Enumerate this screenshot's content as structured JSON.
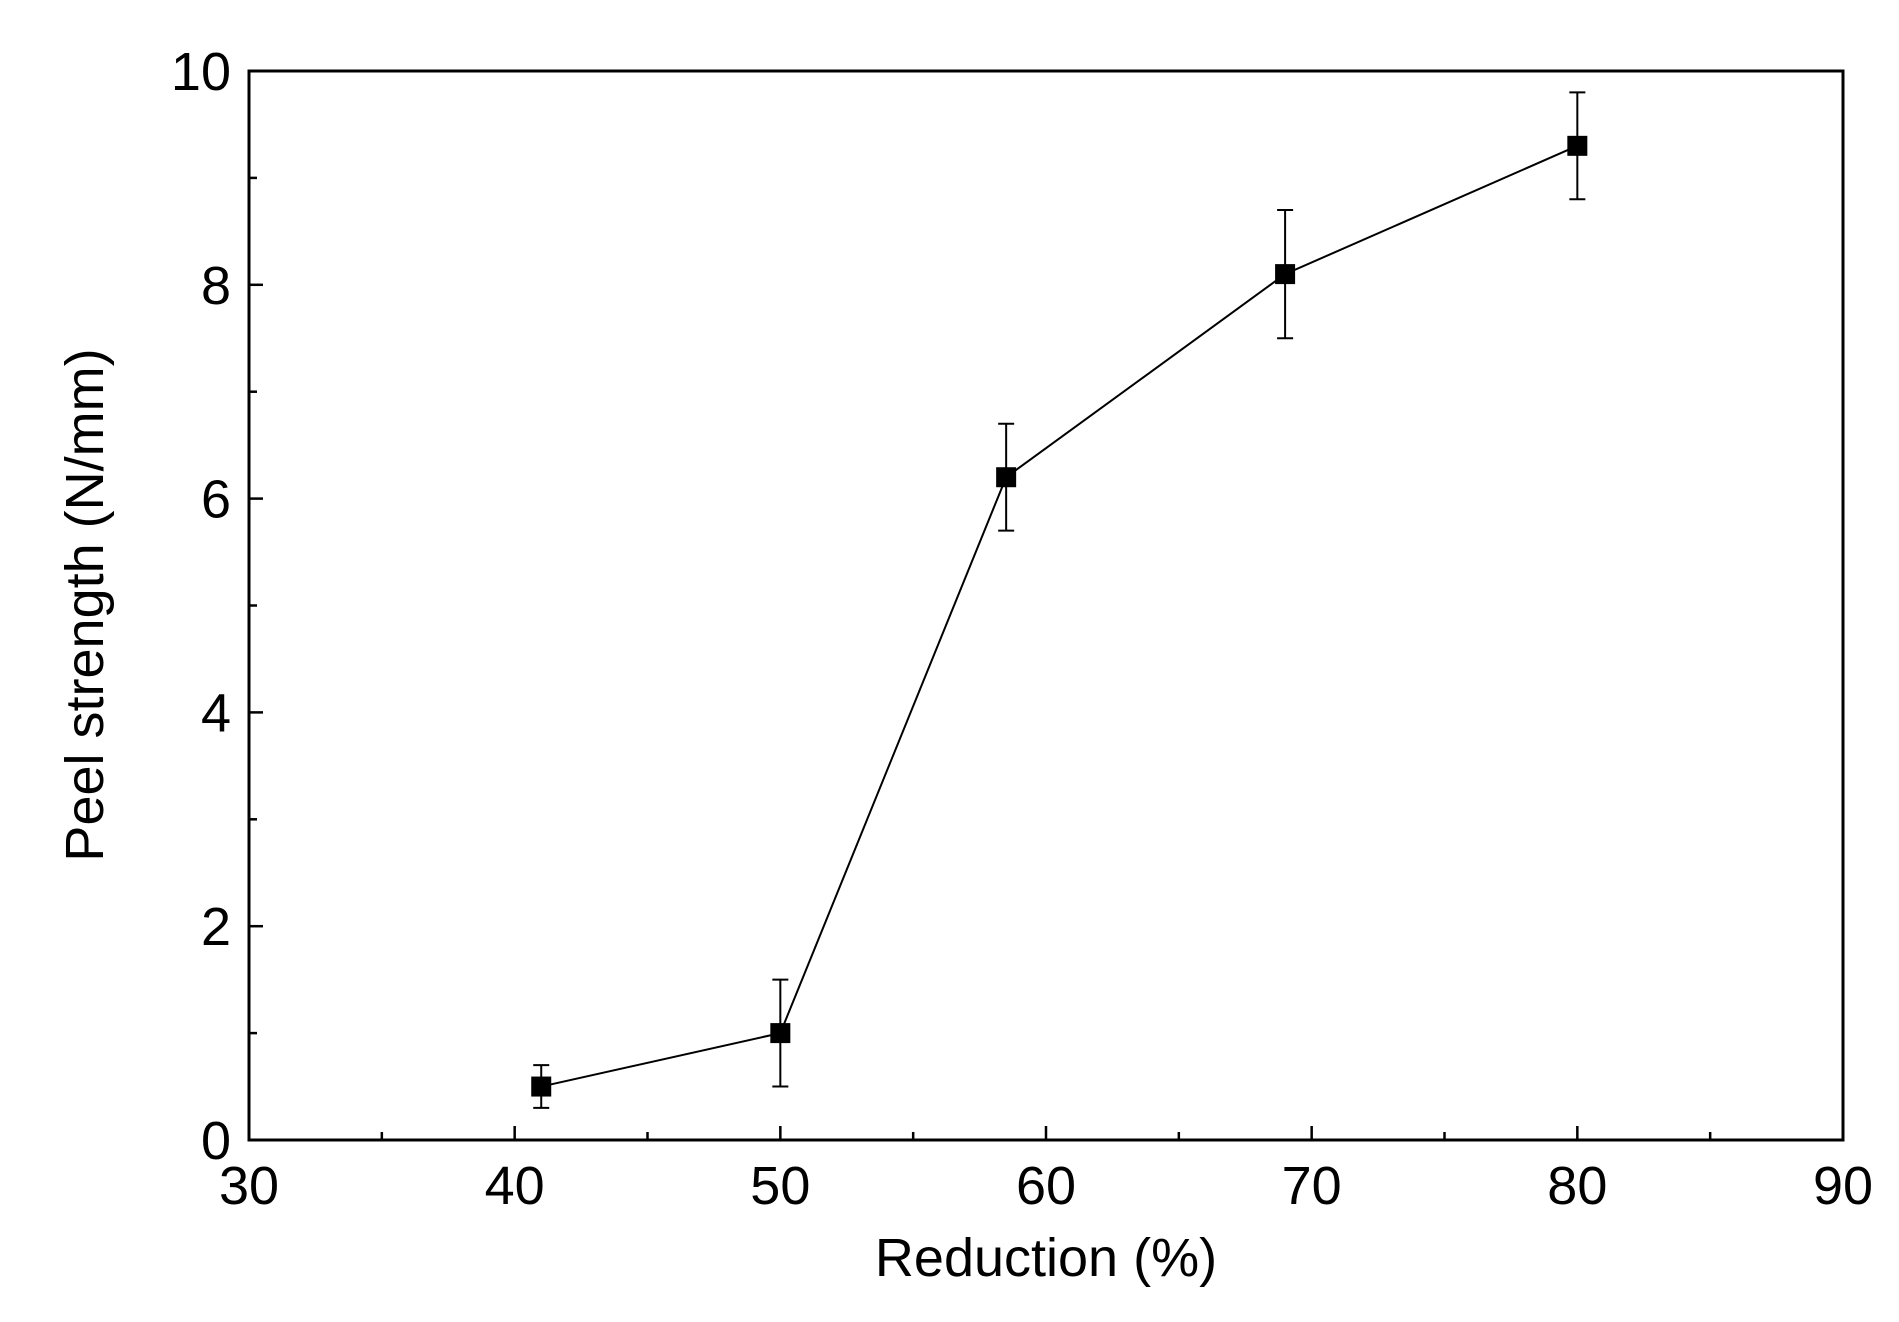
{
  "chart_data": {
    "type": "line",
    "title": "",
    "xlabel": "Reduction (%)",
    "ylabel": "Peel strength (N/mm)",
    "xlim": [
      30,
      90
    ],
    "ylim": [
      0,
      10
    ],
    "x_ticks": [
      30,
      40,
      50,
      60,
      70,
      80,
      90
    ],
    "y_ticks": [
      0,
      2,
      4,
      6,
      8,
      10
    ],
    "x_minor_step": 5,
    "y_minor_step": 1,
    "grid": false,
    "legend": "none",
    "series": [
      {
        "name": "Peel strength",
        "marker": "square",
        "color": "#000000",
        "x": [
          41,
          50,
          58.5,
          69,
          80
        ],
        "y": [
          0.5,
          1.0,
          6.2,
          8.1,
          9.3
        ],
        "error": [
          0.2,
          0.5,
          0.5,
          0.6,
          0.5
        ]
      }
    ]
  }
}
